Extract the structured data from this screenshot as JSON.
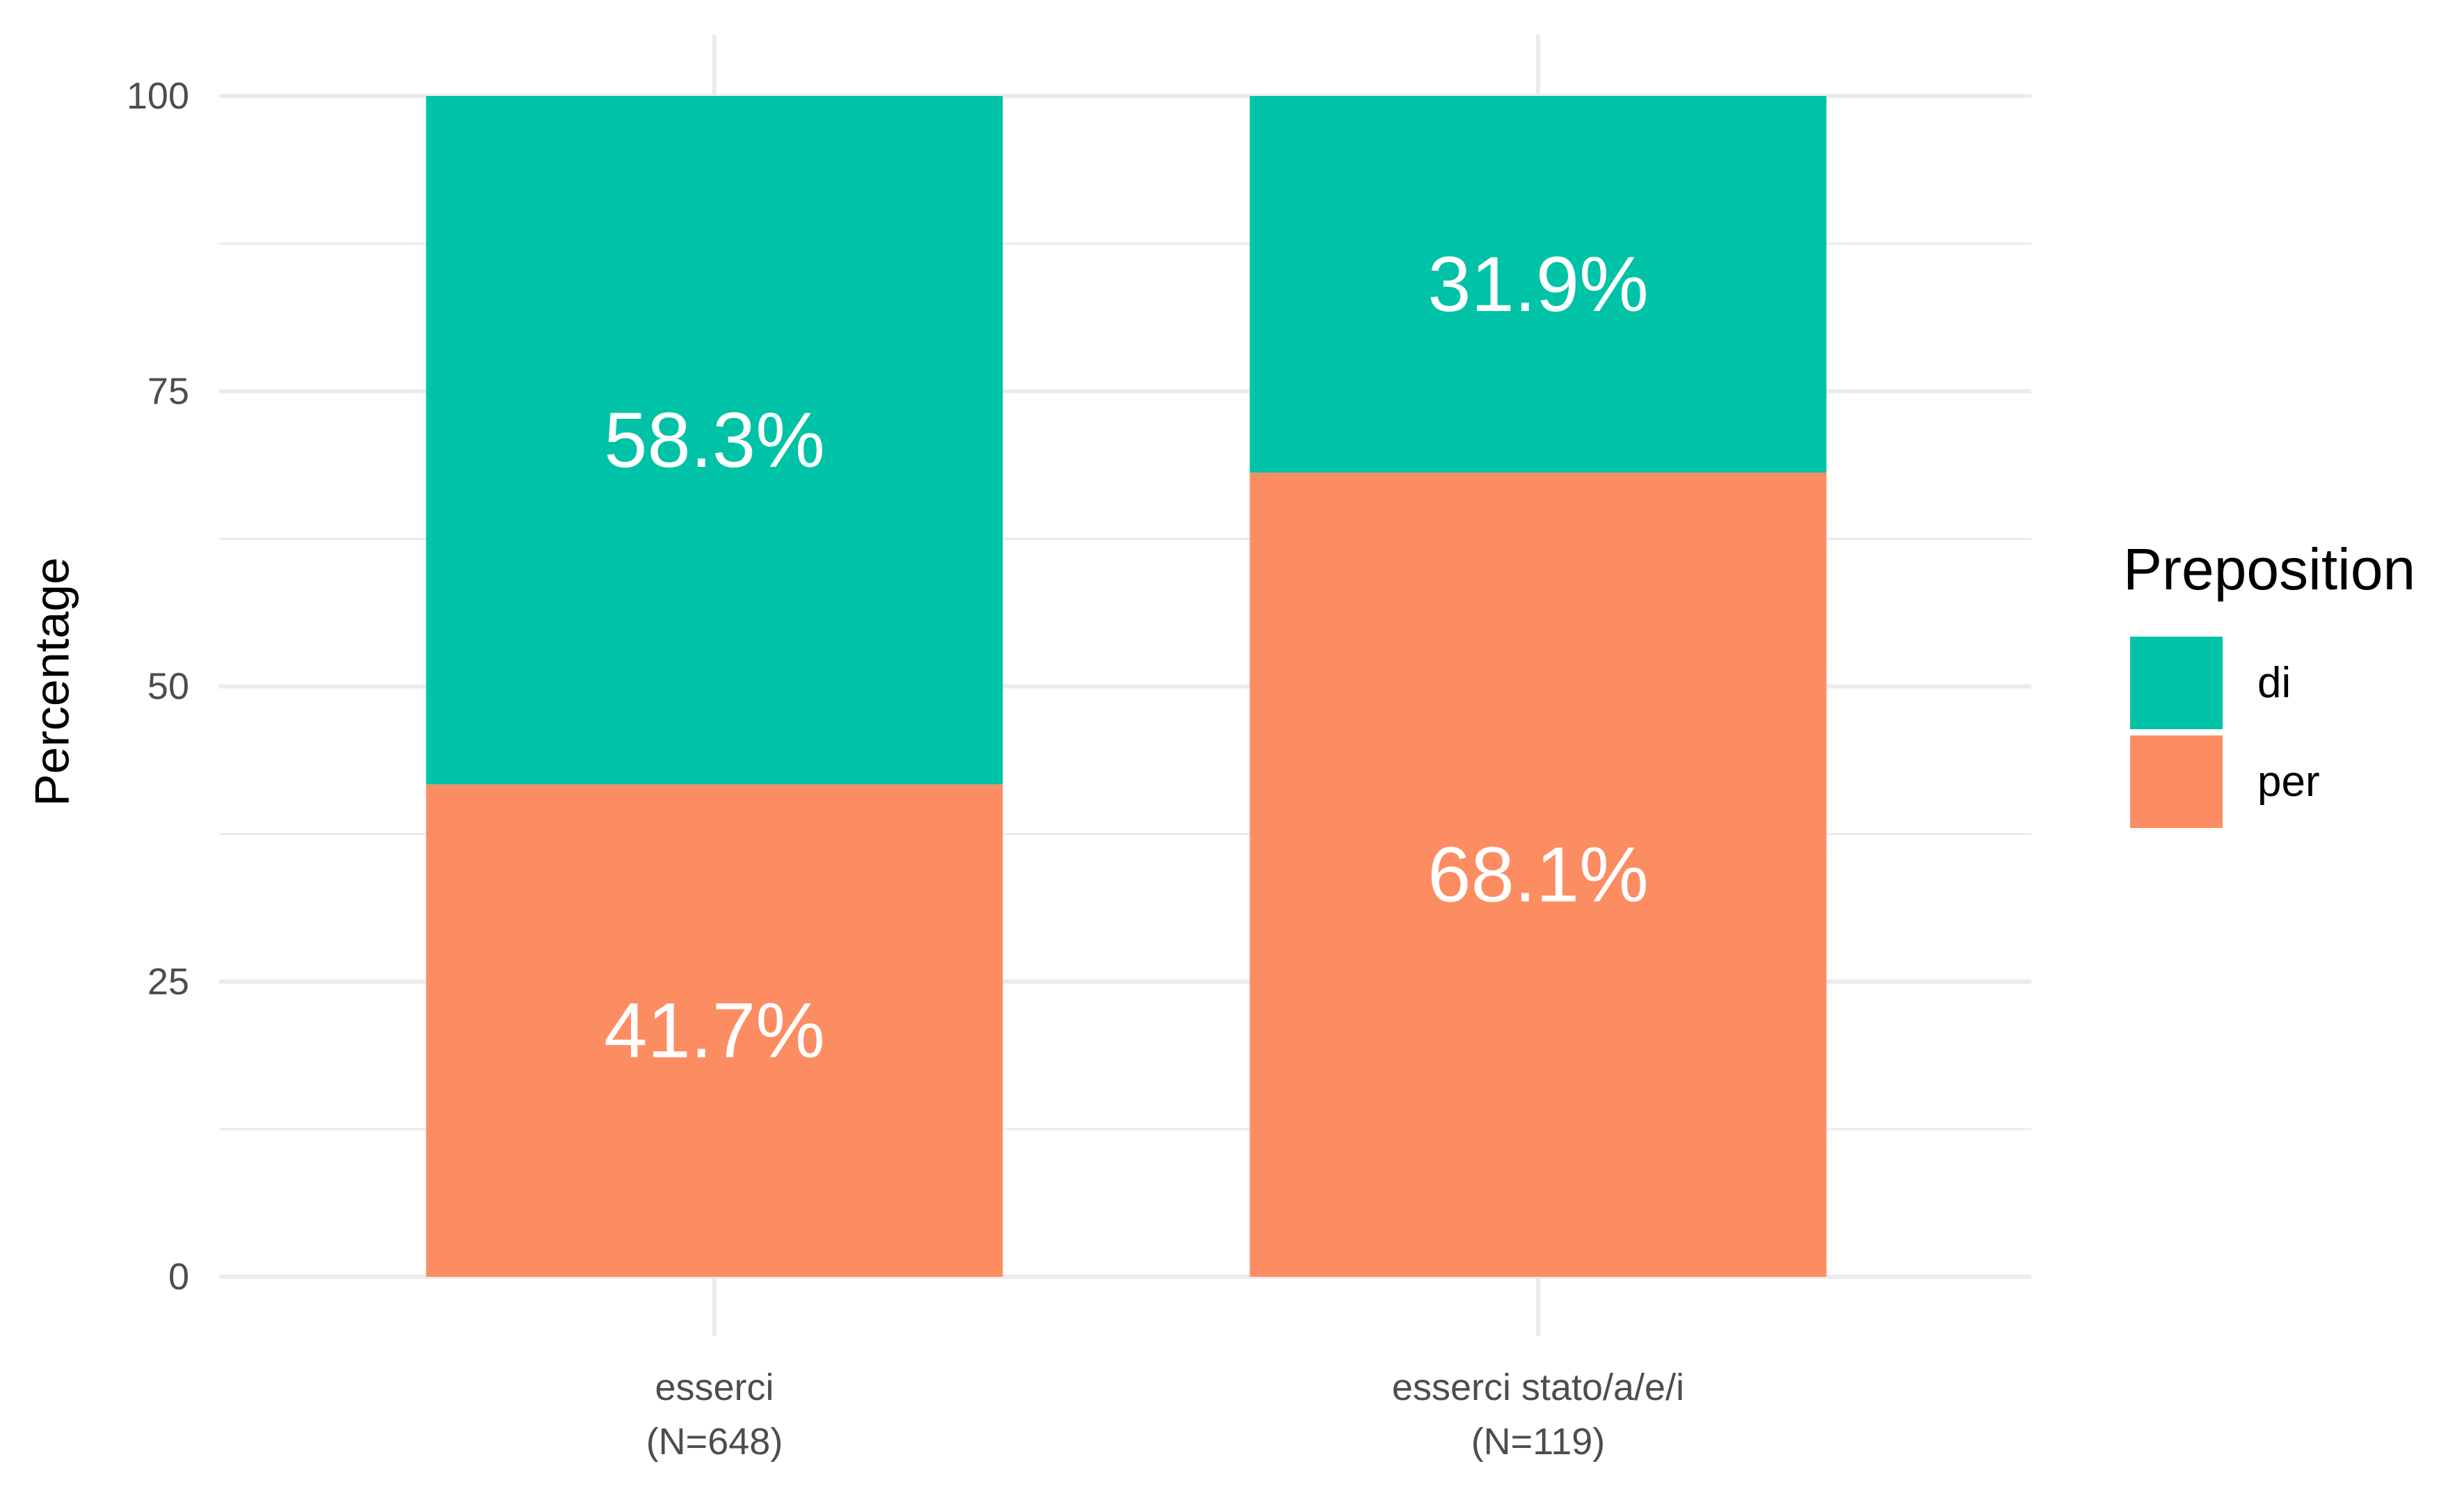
{
  "chart_data": {
    "type": "bar",
    "stacked": true,
    "title": "",
    "xlabel": "",
    "ylabel": "Percentage",
    "ylim": [
      0,
      100
    ],
    "yticks": [
      0,
      25,
      50,
      75,
      100
    ],
    "ytick_labels": [
      "0",
      "25",
      "50",
      "75",
      "100"
    ],
    "grid": true,
    "legend_position": "right",
    "categories": [
      {
        "line1": "esserci",
        "line2": "(N=648)"
      },
      {
        "line1": "esserci stato/a/e/i",
        "line2": "(N=119)"
      }
    ],
    "legend": {
      "title": "Preposition",
      "entries": [
        "di",
        "per"
      ]
    },
    "series": [
      {
        "name": "per",
        "values": [
          41.7,
          68.1
        ],
        "labels": [
          "41.7%",
          "68.1%"
        ],
        "color": "#FC8D62"
      },
      {
        "name": "di",
        "values": [
          58.3,
          31.9
        ],
        "labels": [
          "58.3%",
          "31.9%"
        ],
        "color": "#00C2A6"
      }
    ],
    "colors": {
      "background": "#FFFFFF",
      "grid": "#EBEBEB",
      "tick_text": "#4D4D4D",
      "axis_text": "#000000",
      "data_label_text": "#FFFFFF"
    }
  }
}
